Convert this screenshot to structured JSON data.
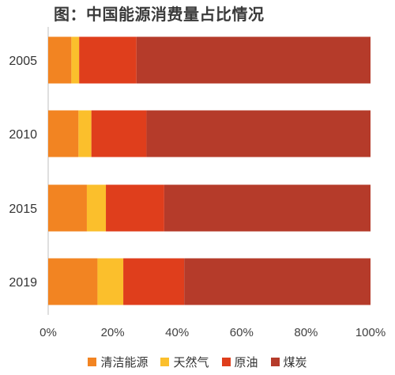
{
  "title": "图：中国能源消费量占比情况",
  "chart_data": {
    "type": "bar",
    "orientation": "horizontal",
    "stacked": true,
    "categories": [
      "2005",
      "2010",
      "2015",
      "2019"
    ],
    "series": [
      {
        "name": "清洁能源",
        "color": "#f28422",
        "values": [
          7.2,
          9.4,
          12.0,
          15.3
        ]
      },
      {
        "name": "天然气",
        "color": "#fbbf2c",
        "values": [
          2.4,
          4.0,
          5.9,
          8.0
        ]
      },
      {
        "name": "原油",
        "color": "#df3e1c",
        "values": [
          17.8,
          17.1,
          18.1,
          18.9
        ]
      },
      {
        "name": "煤炭",
        "color": "#b53b2a",
        "values": [
          72.6,
          69.5,
          64.0,
          57.8
        ]
      }
    ],
    "xlim": [
      0,
      100
    ],
    "xticks": [
      "0%",
      "20%",
      "40%",
      "60%",
      "80%",
      "100%"
    ],
    "grid": false,
    "legend_position": "bottom"
  }
}
